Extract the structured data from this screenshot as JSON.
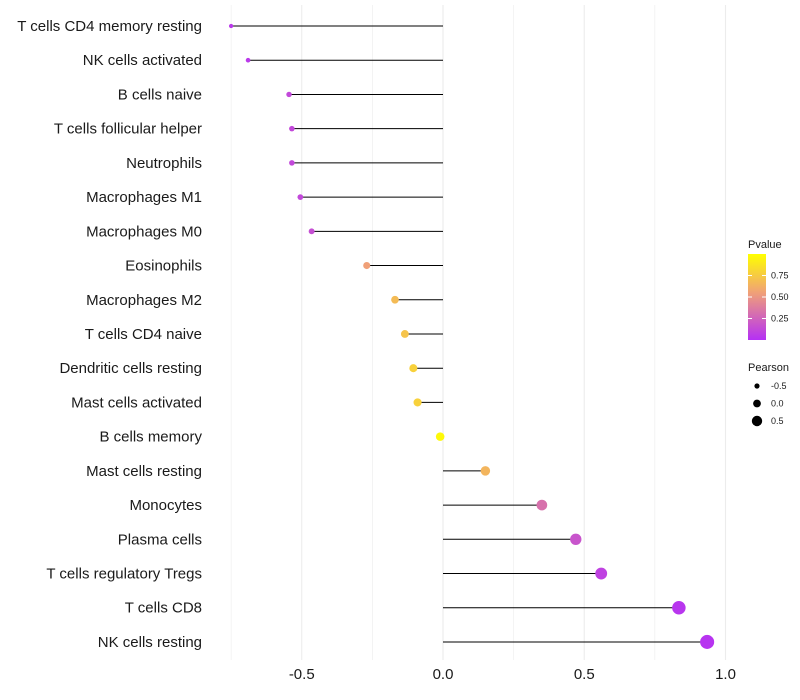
{
  "chart_data": {
    "type": "lollipop",
    "title": "",
    "xlabel": "",
    "ylabel": "",
    "xlim": [
      -0.75,
      1.0
    ],
    "x_ticks": [
      -0.5,
      0.0,
      0.5,
      1.0
    ],
    "x_tick_labels": [
      "-0.5",
      "0.0",
      "0.5",
      "1.0"
    ],
    "grid": true,
    "baseline": 0.0,
    "categories": [
      "T cells CD4 memory resting",
      "NK cells activated",
      "B cells naive",
      "T cells follicular helper",
      "Neutrophils",
      "Macrophages M1",
      "Macrophages M0",
      "Eosinophils",
      "Macrophages M2",
      "T cells CD4 naive",
      "Dendritic cells resting",
      "Mast cells activated",
      "B cells memory",
      "Mast cells resting",
      "Monocytes",
      "Plasma cells",
      "T cells regulatory  Tregs",
      "T cells CD8",
      "NK cells resting"
    ],
    "values": [
      -0.75,
      -0.69,
      -0.545,
      -0.535,
      -0.535,
      -0.505,
      -0.465,
      -0.27,
      -0.17,
      -0.135,
      -0.105,
      -0.09,
      -0.01,
      0.15,
      0.35,
      0.47,
      0.56,
      0.835,
      0.935
    ],
    "pvalues": [
      0.05,
      0.05,
      0.12,
      0.12,
      0.12,
      0.12,
      0.15,
      0.55,
      0.68,
      0.72,
      0.78,
      0.78,
      0.97,
      0.65,
      0.32,
      0.18,
      0.09,
      0.03,
      0.02
    ],
    "color_legend": {
      "title": "Pvalue",
      "ticks": [
        0.25,
        0.5,
        0.75
      ],
      "tick_labels": [
        "0.25",
        "0.50",
        "0.75"
      ],
      "low_color": "#b530f5",
      "mid_color": "#f0a078",
      "high_color": "#ffff00",
      "range": [
        0.0,
        1.0
      ]
    },
    "size_legend": {
      "title": "Pearson",
      "levels": [
        -0.5,
        0.0,
        0.5
      ],
      "level_labels": [
        "-0.5",
        "0.0",
        "0.5"
      ]
    },
    "colors": {
      "stem": "#000000",
      "grid": "#ececec",
      "legend_point": "#000000"
    }
  }
}
